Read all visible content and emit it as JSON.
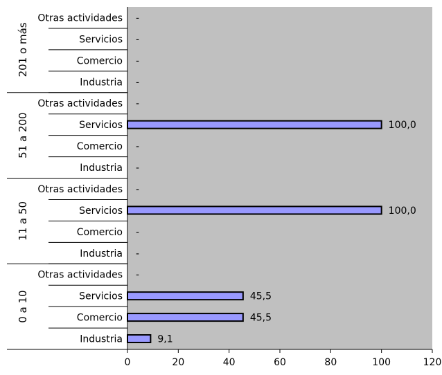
{
  "chart_data": {
    "type": "bar",
    "orientation": "horizontal",
    "xlim": [
      0,
      120
    ],
    "x_ticks": [
      "0",
      "20",
      "40",
      "60",
      "80",
      "100",
      "120"
    ],
    "grid": false,
    "bar_color": "#9999ff",
    "plot_background": "#c0c0c0",
    "groups": [
      {
        "name": "0 a 10",
        "categories": [
          "Industria",
          "Comercio",
          "Servicios",
          "Otras actividades"
        ],
        "values": [
          9.1,
          45.5,
          45.5,
          null
        ],
        "labels": [
          "9,1",
          "45,5",
          "45,5",
          "-"
        ]
      },
      {
        "name": "11 a 50",
        "categories": [
          "Industria",
          "Comercio",
          "Servicios",
          "Otras actividades"
        ],
        "values": [
          null,
          null,
          100.0,
          null
        ],
        "labels": [
          "-",
          "-",
          "100,0",
          "-"
        ]
      },
      {
        "name": "51 a 200",
        "categories": [
          "Industria",
          "Comercio",
          "Servicios",
          "Otras actividades"
        ],
        "values": [
          null,
          null,
          100.0,
          null
        ],
        "labels": [
          "-",
          "-",
          "100,0",
          "-"
        ]
      },
      {
        "name": "201 o más",
        "categories": [
          "Industria",
          "Comercio",
          "Servicios",
          "Otras actividades"
        ],
        "values": [
          null,
          null,
          null,
          null
        ],
        "labels": [
          "-",
          "-",
          "-",
          "-"
        ]
      }
    ]
  }
}
